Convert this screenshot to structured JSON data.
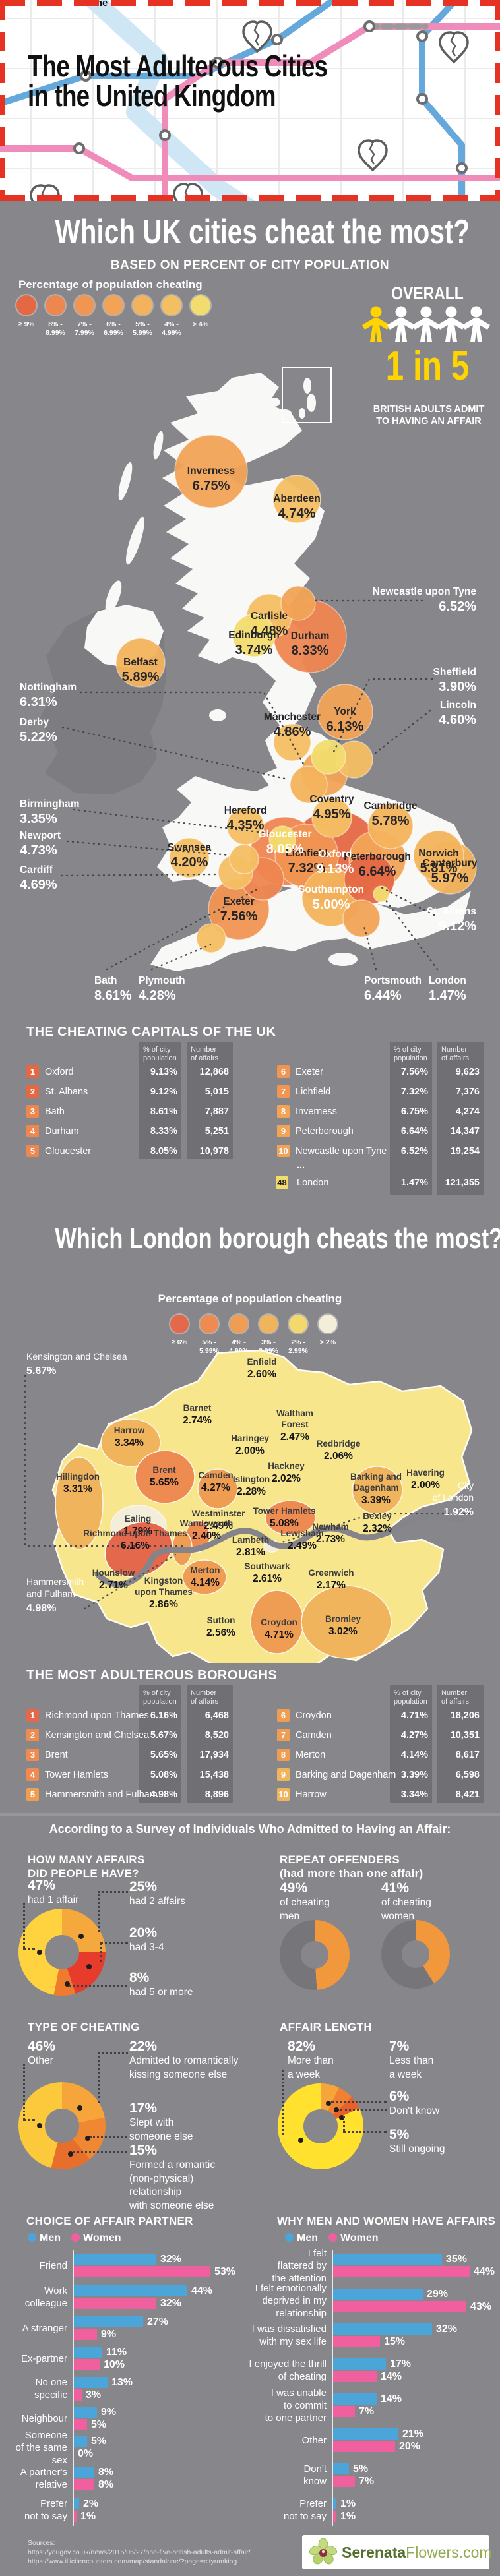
{
  "header": {
    "fragment": "eat the",
    "title_lines": [
      "The Most Adulterous Cities",
      "in the United Kingdom"
    ]
  },
  "uk": {
    "title": "Which UK cities cheat the most?",
    "subtitle": "BASED ON PERCENT OF CITY POPULATION",
    "legend_title": "Percentage of population cheating",
    "legend": [
      {
        "label1": "≥ 9%",
        "label2": "",
        "color": "#e56845"
      },
      {
        "label1": "8% -",
        "label2": "8.99%",
        "color": "#ee8650"
      },
      {
        "label1": "7% -",
        "label2": "7.99%",
        "color": "#f09552"
      },
      {
        "label1": "6% -",
        "label2": "6.99%",
        "color": "#f2a356"
      },
      {
        "label1": "5% -",
        "label2": "5.99%",
        "color": "#f3b35c"
      },
      {
        "label1": "4% -",
        "label2": "4.99%",
        "color": "#f4bf63"
      },
      {
        "label1": "> 4%",
        "label2": "",
        "color": "#f2dc6e"
      }
    ],
    "overall": {
      "label": "OVERALL",
      "stat": "1 in 5",
      "caption": [
        "BRITISH ADULTS ADMIT",
        "TO HAVING AN AFFAIR"
      ]
    }
  },
  "table_cols": {
    "col1": [
      "% of city",
      "population"
    ],
    "col2": [
      "Number",
      "of affairs"
    ]
  },
  "uk_table": {
    "title": "THE CHEATING CAPITALS OF THE UK",
    "rows_left": [
      {
        "rank": "1",
        "name": "Oxford",
        "pct": "9.13%",
        "affairs": "12,868",
        "v": 9.13
      },
      {
        "rank": "2",
        "name": "St. Albans",
        "pct": "9.12%",
        "affairs": "5,015",
        "v": 9.12
      },
      {
        "rank": "3",
        "name": "Bath",
        "pct": "8.61%",
        "affairs": "7,887",
        "v": 8.61
      },
      {
        "rank": "4",
        "name": "Durham",
        "pct": "8.33%",
        "affairs": "5,251",
        "v": 8.33
      },
      {
        "rank": "5",
        "name": "Gloucester",
        "pct": "8.05%",
        "affairs": "10,978",
        "v": 8.05
      }
    ],
    "rows_right": [
      {
        "rank": "6",
        "name": "Exeter",
        "pct": "7.56%",
        "affairs": "9,623",
        "v": 7.56
      },
      {
        "rank": "7",
        "name": "Lichfield",
        "pct": "7.32%",
        "affairs": "7,376",
        "v": 7.32
      },
      {
        "rank": "8",
        "name": "Inverness",
        "pct": "6.75%",
        "affairs": "4,274",
        "v": 6.75
      },
      {
        "rank": "9",
        "name": "Peterborough",
        "pct": "6.64%",
        "affairs": "14,347",
        "v": 6.64
      },
      {
        "rank": "10",
        "name": "Newcastle upon Tyne",
        "pct": "6.52%",
        "affairs": "19,254",
        "v": 6.52
      }
    ],
    "ellipsis": "...",
    "row48": {
      "rank": "48",
      "name": "London",
      "pct": "1.47%",
      "affairs": "121,355",
      "v": 1.47
    }
  },
  "london": {
    "title": "Which London borough cheats the most?",
    "legend_title": "Percentage of population cheating",
    "legend": [
      {
        "label1": "≥ 6%",
        "label2": "",
        "color": "#e4694c"
      },
      {
        "label1": "5% -",
        "label2": "5.99%",
        "color": "#ed8b51"
      },
      {
        "label1": "4% -",
        "label2": "4.99%",
        "color": "#ee9d52"
      },
      {
        "label1": "3% -",
        "label2": "3.99%",
        "color": "#f0b55c"
      },
      {
        "label1": "2% -",
        "label2": "2.99%",
        "color": "#f2d86d"
      },
      {
        "label1": "> 2%",
        "label2": "",
        "color": "#f3eeda"
      }
    ]
  },
  "london_table": {
    "title": "THE MOST ADULTEROUS BOROUGHS",
    "rows_left": [
      {
        "rank": "1",
        "name": "Richmond upon Thames",
        "pct": "6.16%",
        "affairs": "6,468",
        "v": 6.16
      },
      {
        "rank": "2",
        "name": "Kensington and Chelsea",
        "pct": "5.67%",
        "affairs": "8,520",
        "v": 5.67
      },
      {
        "rank": "3",
        "name": "Brent",
        "pct": "5.65%",
        "affairs": "17,934",
        "v": 5.65
      },
      {
        "rank": "4",
        "name": "Tower Hamlets",
        "pct": "5.08%",
        "affairs": "15,438",
        "v": 5.08
      },
      {
        "rank": "5",
        "name": "Hammersmith and Fulham",
        "pct": "4.98%",
        "affairs": "8,896",
        "v": 4.98
      }
    ],
    "rows_right": [
      {
        "rank": "6",
        "name": "Croydon",
        "pct": "4.71%",
        "affairs": "18,206",
        "v": 4.71
      },
      {
        "rank": "7",
        "name": "Camden",
        "pct": "4.27%",
        "affairs": "10,351",
        "v": 4.27
      },
      {
        "rank": "8",
        "name": "Merton",
        "pct": "4.14%",
        "affairs": "8,617",
        "v": 4.14
      },
      {
        "rank": "9",
        "name": "Barking and Dagenham",
        "pct": "3.39%",
        "affairs": "6,598",
        "v": 3.39
      },
      {
        "rank": "10",
        "name": "Harrow",
        "pct": "3.34%",
        "affairs": "8,421",
        "v": 3.34
      }
    ]
  },
  "survey": {
    "heading": "According to a Survey of Individuals Who Admitted to Having an Affair:",
    "h_affairs": [
      "HOW MANY AFFAIRS",
      "DID PEOPLE HAVE?"
    ],
    "h_repeat": [
      "REPEAT OFFENDERS",
      "(had more than one affair)"
    ],
    "h_type": [
      "TYPE OF CHEATING"
    ],
    "h_length": [
      "AFFAIR LENGTH"
    ],
    "h_partner": [
      "CHOICE OF AFFAIR PARTNER"
    ],
    "h_reasons": [
      "WHY MEN AND WOMEN HAVE AFFAIRS"
    ],
    "legend_men": "Men",
    "legend_women": "Women"
  },
  "footer": {
    "sources_label": "Sources:",
    "sources": [
      "https://yougov.co.uk/news/2015/05/27/one-five-british-adults-admit-affair/",
      "https://www.illicitencounters.com/map/standalone/?page=cityranking"
    ],
    "logo_bold": "Serenata",
    "logo_light": "Flowers.com"
  },
  "chart_data": [
    {
      "id": "uk_cities",
      "type": "scatter",
      "title": "Which UK cities cheat the most?",
      "ylabel": "percent of city population cheating",
      "points": [
        {
          "name": "Inverness",
          "value": 6.75
        },
        {
          "name": "Aberdeen",
          "value": 4.74
        },
        {
          "name": "Edinburgh",
          "value": 3.74
        },
        {
          "name": "Carlisle",
          "value": 4.48
        },
        {
          "name": "Durham",
          "value": 8.33
        },
        {
          "name": "Newcastle upon Tyne",
          "value": 6.52
        },
        {
          "name": "Belfast",
          "value": 5.89
        },
        {
          "name": "York",
          "value": 6.13
        },
        {
          "name": "Sheffield",
          "value": 3.9
        },
        {
          "name": "Nottingham",
          "value": 6.31
        },
        {
          "name": "Derby",
          "value": 5.22
        },
        {
          "name": "Manchester",
          "value": 4.86
        },
        {
          "name": "Lincoln",
          "value": 4.6
        },
        {
          "name": "Lichfield",
          "value": 7.32
        },
        {
          "name": "Peterborough",
          "value": 6.64
        },
        {
          "name": "Norwich",
          "value": 5.81
        },
        {
          "name": "Birmingham",
          "value": 3.35
        },
        {
          "name": "Coventry",
          "value": 4.95
        },
        {
          "name": "Cambridge",
          "value": 5.78
        },
        {
          "name": "Hereford",
          "value": 4.35
        },
        {
          "name": "Swansea",
          "value": 4.2
        },
        {
          "name": "Gloucester",
          "value": 8.05
        },
        {
          "name": "Oxford",
          "value": 9.13
        },
        {
          "name": "Newport",
          "value": 4.73
        },
        {
          "name": "Cardiff",
          "value": 4.69
        },
        {
          "name": "Canterbury",
          "value": 5.97
        },
        {
          "name": "Southampton",
          "value": 5.0
        },
        {
          "name": "St. Albans",
          "value": 9.12
        },
        {
          "name": "Exeter",
          "value": 7.56
        },
        {
          "name": "Bath",
          "value": 8.61
        },
        {
          "name": "Plymouth",
          "value": 4.28
        },
        {
          "name": "Portsmouth",
          "value": 6.44
        },
        {
          "name": "London",
          "value": 1.47
        }
      ]
    },
    {
      "id": "london_boroughs",
      "type": "scatter",
      "title": "Which London borough cheats the most?",
      "ylabel": "percent of population cheating",
      "points": [
        {
          "name": "Enfield",
          "value": 2.6
        },
        {
          "name": "Barnet",
          "value": 2.74
        },
        {
          "name": "Harrow",
          "value": 3.34
        },
        {
          "name": "Hillingdon",
          "value": 3.31
        },
        {
          "name": "Haringey",
          "value": 2.0
        },
        {
          "name": "Waltham Forest",
          "value": 2.47
        },
        {
          "name": "Redbridge",
          "value": 2.06
        },
        {
          "name": "Havering",
          "value": 2.0
        },
        {
          "name": "Barking and Dagenham",
          "value": 3.39
        },
        {
          "name": "Brent",
          "value": 5.65
        },
        {
          "name": "Camden",
          "value": 4.27
        },
        {
          "name": "Islington",
          "value": 2.28
        },
        {
          "name": "Hackney",
          "value": 2.02
        },
        {
          "name": "Tower Hamlets",
          "value": 5.08
        },
        {
          "name": "Westminster",
          "value": 2.49
        },
        {
          "name": "Newham",
          "value": 2.73
        },
        {
          "name": "City of London",
          "value": 1.92
        },
        {
          "name": "Kensington and Chelsea",
          "value": 5.67
        },
        {
          "name": "Hammersmith and Fulham",
          "value": 4.98
        },
        {
          "name": "Ealing",
          "value": 1.79
        },
        {
          "name": "Hounslow",
          "value": 2.71
        },
        {
          "name": "Richmond upon Thames",
          "value": 6.16
        },
        {
          "name": "Kingston upon Thames",
          "value": 2.86
        },
        {
          "name": "Wandsworth",
          "value": 2.4
        },
        {
          "name": "Merton",
          "value": 4.14
        },
        {
          "name": "Sutton",
          "value": 2.56
        },
        {
          "name": "Lambeth",
          "value": 2.81
        },
        {
          "name": "Southwark",
          "value": 2.61
        },
        {
          "name": "Lewisham",
          "value": 2.49
        },
        {
          "name": "Greenwich",
          "value": 2.17
        },
        {
          "name": "Bexley",
          "value": 2.32
        },
        {
          "name": "Bromley",
          "value": 3.02
        },
        {
          "name": "Croydon",
          "value": 4.71
        }
      ]
    },
    {
      "id": "affair_count",
      "type": "pie",
      "title": "HOW MANY AFFAIRS DID PEOPLE HAVE?",
      "labels": [
        "had 1 affair",
        "had 2 affairs",
        "had 3-4",
        "had 5 or more"
      ],
      "values": [
        47,
        25,
        20,
        8
      ],
      "colors": [
        "#ffd23f",
        "#f5a93d",
        "#e73b2b",
        "#ef7b2e"
      ]
    },
    {
      "id": "repeat_offenders",
      "type": "pie",
      "title": "REPEAT OFFENDERS (had more than one affair)",
      "series": [
        {
          "name": "of cheating men",
          "value": 49
        },
        {
          "name": "of cheating women",
          "value": 41
        }
      ],
      "color": "#f0983b",
      "rest_color": "#75757a"
    },
    {
      "id": "cheating_type",
      "type": "pie",
      "title": "TYPE OF CHEATING",
      "labels": [
        "Other",
        "Admitted to romantically kissing someone else",
        "Slept with someone else",
        "Formed a romantic (non-physical) relationship with someone else"
      ],
      "values": [
        46,
        22,
        17,
        15
      ],
      "colors": [
        "#fcc83c",
        "#f5a53a",
        "#f08732",
        "#e76e2b"
      ]
    },
    {
      "id": "affair_length",
      "type": "pie",
      "title": "AFFAIR LENGTH",
      "labels": [
        "More than a week",
        "Less than a week",
        "Don't know",
        "Still ongoing"
      ],
      "values": [
        82,
        7,
        6,
        5
      ],
      "colors": [
        "#ffe12e",
        "#f5a53a",
        "#f08032",
        "#e8612b"
      ]
    },
    {
      "id": "affair_partner",
      "type": "bar",
      "title": "CHOICE OF AFFAIR PARTNER",
      "categories": [
        "Friend",
        "Work colleague",
        "A stranger",
        "Ex-partner",
        "No one specific",
        "Neighbour",
        "Someone of the same sex",
        "A partner's relative",
        "Prefer not to say"
      ],
      "series": [
        {
          "name": "Men",
          "color": "#4ba5d9",
          "values": [
            32,
            44,
            27,
            11,
            13,
            9,
            5,
            8,
            2
          ]
        },
        {
          "name": "Women",
          "color": "#f0609e",
          "values": [
            53,
            32,
            9,
            10,
            3,
            5,
            0,
            8,
            1
          ]
        }
      ]
    },
    {
      "id": "affair_reasons",
      "type": "bar",
      "title": "WHY MEN AND WOMEN HAVE AFFAIRS",
      "categories": [
        "I felt flattered by the attention",
        "I felt emotionally deprived in my relationship",
        "I was dissatisfied with my sex life",
        "I enjoyed the thrill of cheating",
        "I was unable to commit to one partner",
        "Other",
        "Don't know",
        "Prefer not to say"
      ],
      "series": [
        {
          "name": "Men",
          "color": "#4ba5d9",
          "values": [
            35,
            29,
            32,
            17,
            14,
            21,
            5,
            1
          ]
        },
        {
          "name": "Women",
          "color": "#f0609e",
          "values": [
            44,
            43,
            15,
            14,
            7,
            20,
            7,
            1
          ]
        }
      ]
    }
  ]
}
